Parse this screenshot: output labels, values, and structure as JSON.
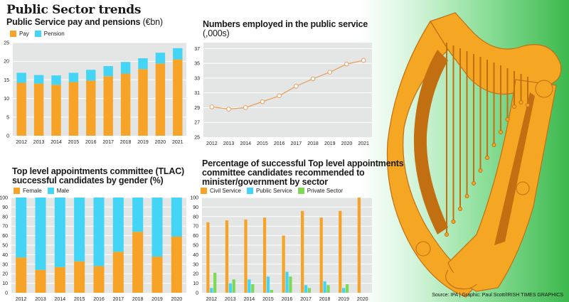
{
  "page": {
    "title": "Public Sector trends",
    "source": "Source: IPA  |  Graphic: Paul Scott/IRISH TIMES GRAPHICS"
  },
  "colors": {
    "orange": "#f6a327",
    "blue": "#44d4f5",
    "green": "#7ed957",
    "plot_bg": "#e3e6e5",
    "line": "#e8a060",
    "harp": "#f5a623",
    "harp_dark": "#c26f12",
    "bg_green": "#3cb84d"
  },
  "chart_data": [
    {
      "id": "pay_pensions",
      "type": "bar",
      "stacked": true,
      "title": "Public Service pay and pensions",
      "title_unit": "(€bn)",
      "categories": [
        "2012",
        "2013",
        "2014",
        "2015",
        "2016",
        "2017",
        "2018",
        "2019",
        "2020",
        "2021"
      ],
      "series": [
        {
          "name": "Pay",
          "color": "#f6a327",
          "values": [
            14.2,
            14.0,
            13.7,
            14.4,
            14.8,
            16.0,
            16.7,
            17.9,
            19.4,
            20.5
          ]
        },
        {
          "name": "Pension",
          "color": "#44d4f5",
          "values": [
            2.7,
            2.3,
            2.5,
            2.5,
            2.9,
            2.7,
            3.1,
            2.9,
            2.9,
            3.0
          ]
        }
      ],
      "yticks": [
        0,
        5,
        10,
        15,
        20,
        25
      ],
      "ylim": [
        0,
        25
      ],
      "grid": true,
      "legend": "top-left"
    },
    {
      "id": "employed",
      "type": "line",
      "title": "Numbers employed in the public service",
      "title_unit": "(,000s)",
      "categories": [
        "2012",
        "2013",
        "2014",
        "2015",
        "2016",
        "2017",
        "2018",
        "2019",
        "2020",
        "2021"
      ],
      "series": [
        {
          "name": "Employed",
          "color": "#e8a060",
          "values": [
            29.1,
            28.8,
            29.0,
            29.8,
            30.6,
            31.9,
            32.9,
            33.8,
            34.9,
            35.4
          ]
        }
      ],
      "yticks": [
        25,
        27,
        29,
        31,
        33,
        35,
        37
      ],
      "ylim": [
        25,
        37.8
      ],
      "grid": true
    },
    {
      "id": "tlac_gender",
      "type": "bar",
      "stacked": true,
      "title": "Top level appointments committee (TLAC) successful candidates by gender (%)",
      "title_lines": [
        "Top level appointments committee (TLAC)",
        "successful candidates by gender (%)"
      ],
      "categories": [
        "2012",
        "2013",
        "2014",
        "2015",
        "2016",
        "2017",
        "2018",
        "2019",
        "2020"
      ],
      "series": [
        {
          "name": "Female",
          "color": "#f6a327",
          "values": [
            37,
            24,
            27,
            33,
            28,
            43,
            64,
            38,
            59
          ]
        },
        {
          "name": "Male",
          "color": "#44d4f5",
          "values": [
            63,
            76,
            73,
            67,
            72,
            57,
            36,
            62,
            41
          ]
        }
      ],
      "yticks": [
        0,
        10,
        20,
        30,
        40,
        50,
        60,
        70,
        80,
        90,
        100
      ],
      "ylim": [
        0,
        100
      ],
      "grid": true,
      "legend": "top-left"
    },
    {
      "id": "tlac_sector",
      "type": "bar",
      "stacked": false,
      "title": "Percentage of successful Top level appointments committee candidates recommended to minister/government by sector",
      "title_lines": [
        "Percentage of successful Top level appointments",
        "committee candidates recommended to",
        "minister/government by sector"
      ],
      "categories": [
        "2012",
        "2013",
        "2014",
        "2015",
        "2016",
        "2017",
        "2018",
        "2019",
        "2020"
      ],
      "series": [
        {
          "name": "Civil Service",
          "color": "#f6a327",
          "values": [
            74,
            76,
            77,
            79,
            60,
            86,
            79,
            86,
            100
          ]
        },
        {
          "name": "Public Service",
          "color": "#44d4f5",
          "values": [
            5,
            10,
            14,
            17,
            22,
            8,
            12,
            5,
            0
          ]
        },
        {
          "name": "Private Sector",
          "color": "#7ed957",
          "values": [
            21,
            14,
            9,
            3,
            17,
            5,
            8,
            9,
            0
          ]
        }
      ],
      "yticks": [
        0,
        10,
        20,
        30,
        40,
        50,
        60,
        70,
        80,
        90,
        100
      ],
      "ylim": [
        0,
        100
      ],
      "grid": true,
      "legend": "top-left"
    }
  ]
}
